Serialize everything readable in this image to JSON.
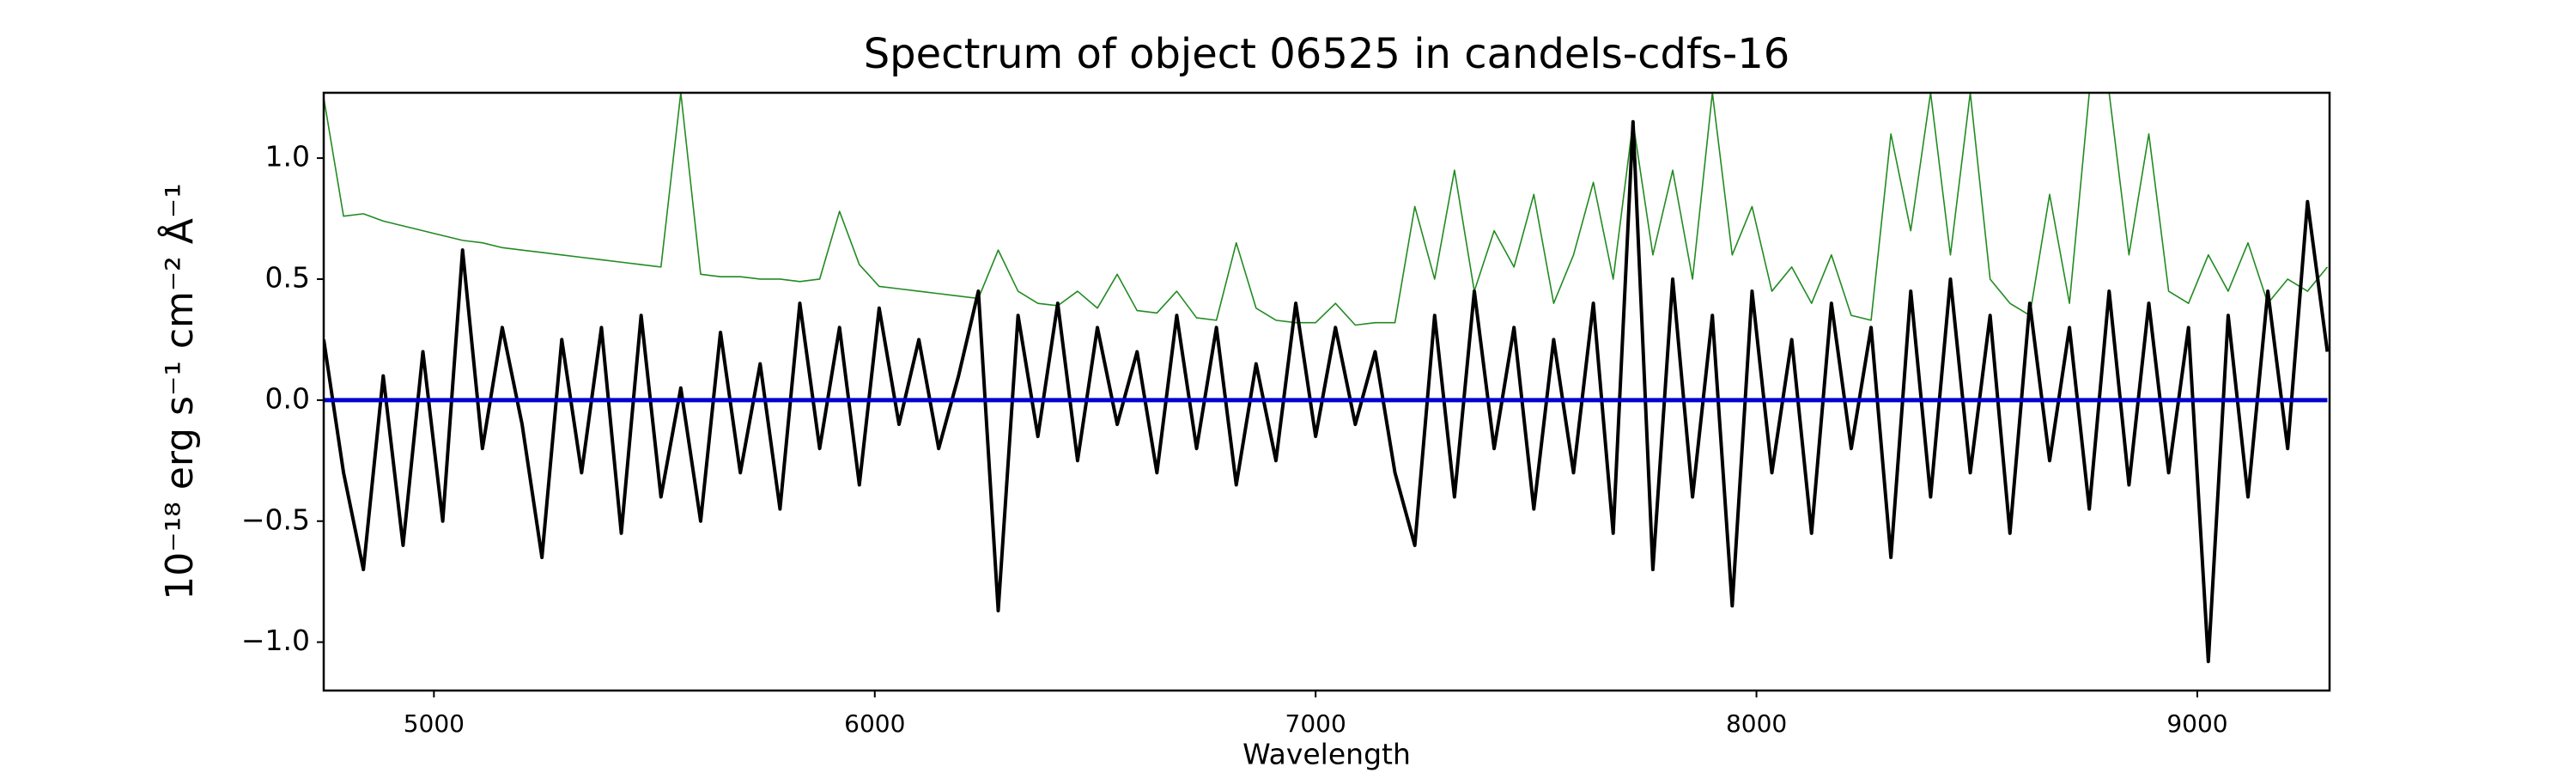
{
  "chart_data": {
    "type": "line",
    "title": "Spectrum of object 06525 in candels-cdfs-16",
    "xlabel": "Wavelength",
    "ylabel": "10⁻¹⁸ erg s⁻¹ cm⁻² Å⁻¹",
    "x": [
      4750,
      4795,
      4840,
      4885,
      4930,
      4975,
      5020,
      5065,
      5110,
      5155,
      5200,
      5245,
      5290,
      5335,
      5380,
      5425,
      5470,
      5515,
      5560,
      5605,
      5650,
      5695,
      5740,
      5785,
      5830,
      5875,
      5920,
      5965,
      6010,
      6055,
      6100,
      6145,
      6190,
      6235,
      6280,
      6325,
      6370,
      6415,
      6460,
      6505,
      6550,
      6595,
      6640,
      6685,
      6730,
      6775,
      6820,
      6865,
      6910,
      6955,
      7000,
      7045,
      7090,
      7135,
      7180,
      7225,
      7270,
      7315,
      7360,
      7405,
      7450,
      7495,
      7540,
      7585,
      7630,
      7675,
      7720,
      7765,
      7810,
      7855,
      7900,
      7945,
      7990,
      8035,
      8080,
      8125,
      8170,
      8215,
      8260,
      8305,
      8350,
      8395,
      8440,
      8485,
      8530,
      8575,
      8620,
      8665,
      8710,
      8755,
      8800,
      8845,
      8890,
      8935,
      8980,
      9025,
      9070,
      9115,
      9160,
      9205,
      9250,
      9295
    ],
    "series": [
      {
        "color": "#228b22",
        "width": 1.6,
        "values": [
          1.25,
          0.76,
          0.77,
          0.74,
          0.72,
          0.7,
          0.68,
          0.66,
          0.65,
          0.63,
          0.62,
          0.61,
          0.6,
          0.59,
          0.58,
          0.57,
          0.56,
          0.55,
          1.27,
          0.52,
          0.51,
          0.51,
          0.5,
          0.5,
          0.49,
          0.5,
          0.78,
          0.56,
          0.47,
          0.46,
          0.45,
          0.44,
          0.43,
          0.42,
          0.62,
          0.45,
          0.4,
          0.39,
          0.45,
          0.38,
          0.52,
          0.37,
          0.36,
          0.45,
          0.34,
          0.33,
          0.65,
          0.38,
          0.33,
          0.32,
          0.32,
          0.4,
          0.31,
          0.32,
          0.32,
          0.8,
          0.5,
          0.95,
          0.45,
          0.7,
          0.55,
          0.85,
          0.4,
          0.6,
          0.9,
          0.5,
          1.15,
          0.6,
          0.95,
          0.5,
          1.27,
          0.6,
          0.8,
          0.45,
          0.55,
          0.4,
          0.6,
          0.35,
          0.33,
          1.1,
          0.7,
          1.27,
          0.6,
          1.27,
          0.5,
          0.4,
          0.35,
          0.85,
          0.4,
          1.27,
          1.27,
          0.6,
          1.1,
          0.45,
          0.4,
          0.6,
          0.45,
          0.65,
          0.4,
          0.5,
          0.45,
          0.55
        ]
      },
      {
        "color": "#000000",
        "width": 4,
        "values": [
          0.25,
          -0.3,
          -0.7,
          0.1,
          -0.6,
          0.2,
          -0.5,
          0.62,
          -0.2,
          0.3,
          -0.1,
          -0.65,
          0.25,
          -0.3,
          0.3,
          -0.55,
          0.35,
          -0.4,
          0.05,
          -0.5,
          0.28,
          -0.3,
          0.15,
          -0.45,
          0.4,
          -0.2,
          0.3,
          -0.35,
          0.38,
          -0.1,
          0.25,
          -0.2,
          0.1,
          0.45,
          -0.87,
          0.35,
          -0.15,
          0.4,
          -0.25,
          0.3,
          -0.1,
          0.2,
          -0.3,
          0.35,
          -0.2,
          0.3,
          -0.35,
          0.15,
          -0.25,
          0.4,
          -0.15,
          0.3,
          -0.1,
          0.2,
          -0.3,
          -0.6,
          0.35,
          -0.4,
          0.45,
          -0.2,
          0.3,
          -0.45,
          0.25,
          -0.3,
          0.4,
          -0.55,
          1.15,
          -0.7,
          0.5,
          -0.4,
          0.35,
          -0.85,
          0.45,
          -0.3,
          0.25,
          -0.55,
          0.4,
          -0.2,
          0.3,
          -0.65,
          0.45,
          -0.4,
          0.5,
          -0.3,
          0.35,
          -0.55,
          0.4,
          -0.25,
          0.3,
          -0.45,
          0.45,
          -0.35,
          0.4,
          -0.3,
          0.3,
          -1.08,
          0.35,
          -0.4,
          0.45,
          -0.2,
          0.82,
          0.2
        ]
      },
      {
        "color": "#0000cd",
        "width": 5,
        "values": [
          0,
          0,
          0,
          0,
          0,
          0,
          0,
          0,
          0,
          0,
          0,
          0,
          0,
          0,
          0,
          0,
          0,
          0,
          0,
          0,
          0,
          0,
          0,
          0,
          0,
          0,
          0,
          0,
          0,
          0,
          0,
          0,
          0,
          0,
          0,
          0,
          0,
          0,
          0,
          0,
          0,
          0,
          0,
          0,
          0,
          0,
          0,
          0,
          0,
          0,
          0,
          0,
          0,
          0,
          0,
          0,
          0,
          0,
          0,
          0,
          0,
          0,
          0,
          0,
          0,
          0,
          0,
          0,
          0,
          0,
          0,
          0,
          0,
          0,
          0,
          0,
          0,
          0,
          0,
          0,
          0,
          0,
          0,
          0,
          0,
          0,
          0,
          0,
          0,
          0,
          0,
          0,
          0,
          0,
          0,
          0,
          0,
          0,
          0,
          0,
          0,
          0
        ]
      }
    ],
    "xlim": [
      4750,
      9300
    ],
    "ylim": [
      -1.2,
      1.27
    ],
    "xticks": [
      5000,
      6000,
      7000,
      8000,
      9000
    ],
    "yticks": [
      {
        "value": -1.0,
        "label": "−1.0"
      },
      {
        "value": -0.5,
        "label": "−0.5"
      },
      {
        "value": 0.0,
        "label": "0.0"
      },
      0.5,
      {
        "value": 1.0,
        "label": "1.0"
      }
    ]
  }
}
